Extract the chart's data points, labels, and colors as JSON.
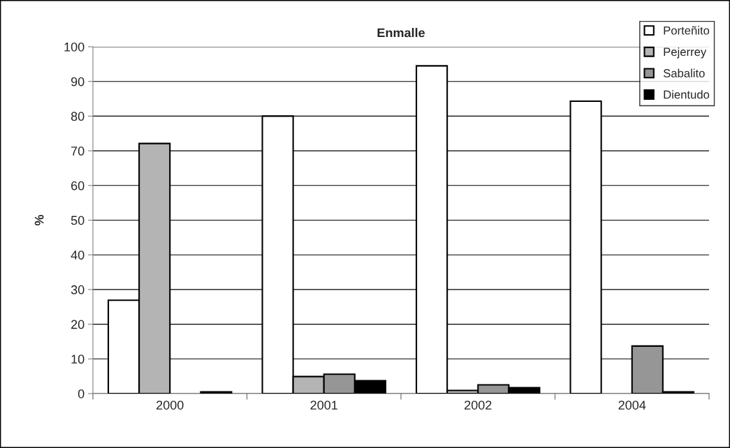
{
  "chart_data": {
    "type": "bar",
    "title": "Enmalle",
    "ylabel": "%",
    "categories": [
      "2000",
      "2001",
      "2002",
      "2004"
    ],
    "series": [
      {
        "name": "Porteñito",
        "color": "#ffffff",
        "values": [
          26.9,
          80,
          94.5,
          84.3
        ]
      },
      {
        "name": "Pejerrey",
        "color": "#b4b4b4",
        "values": [
          72.1,
          4.9,
          0.9,
          null
        ]
      },
      {
        "name": "Sabalito",
        "color": "#969696",
        "values": [
          null,
          5.6,
          2.5,
          13.7
        ]
      },
      {
        "name": "Dientudo",
        "color": "#000000",
        "values": [
          0.5,
          3.7,
          1.7,
          0.5
        ]
      }
    ],
    "ylim": [
      0,
      100
    ],
    "yticks": [
      0,
      10,
      20,
      30,
      40,
      50,
      60,
      70,
      80,
      90,
      100
    ],
    "grid": "y",
    "legend": "top right"
  }
}
